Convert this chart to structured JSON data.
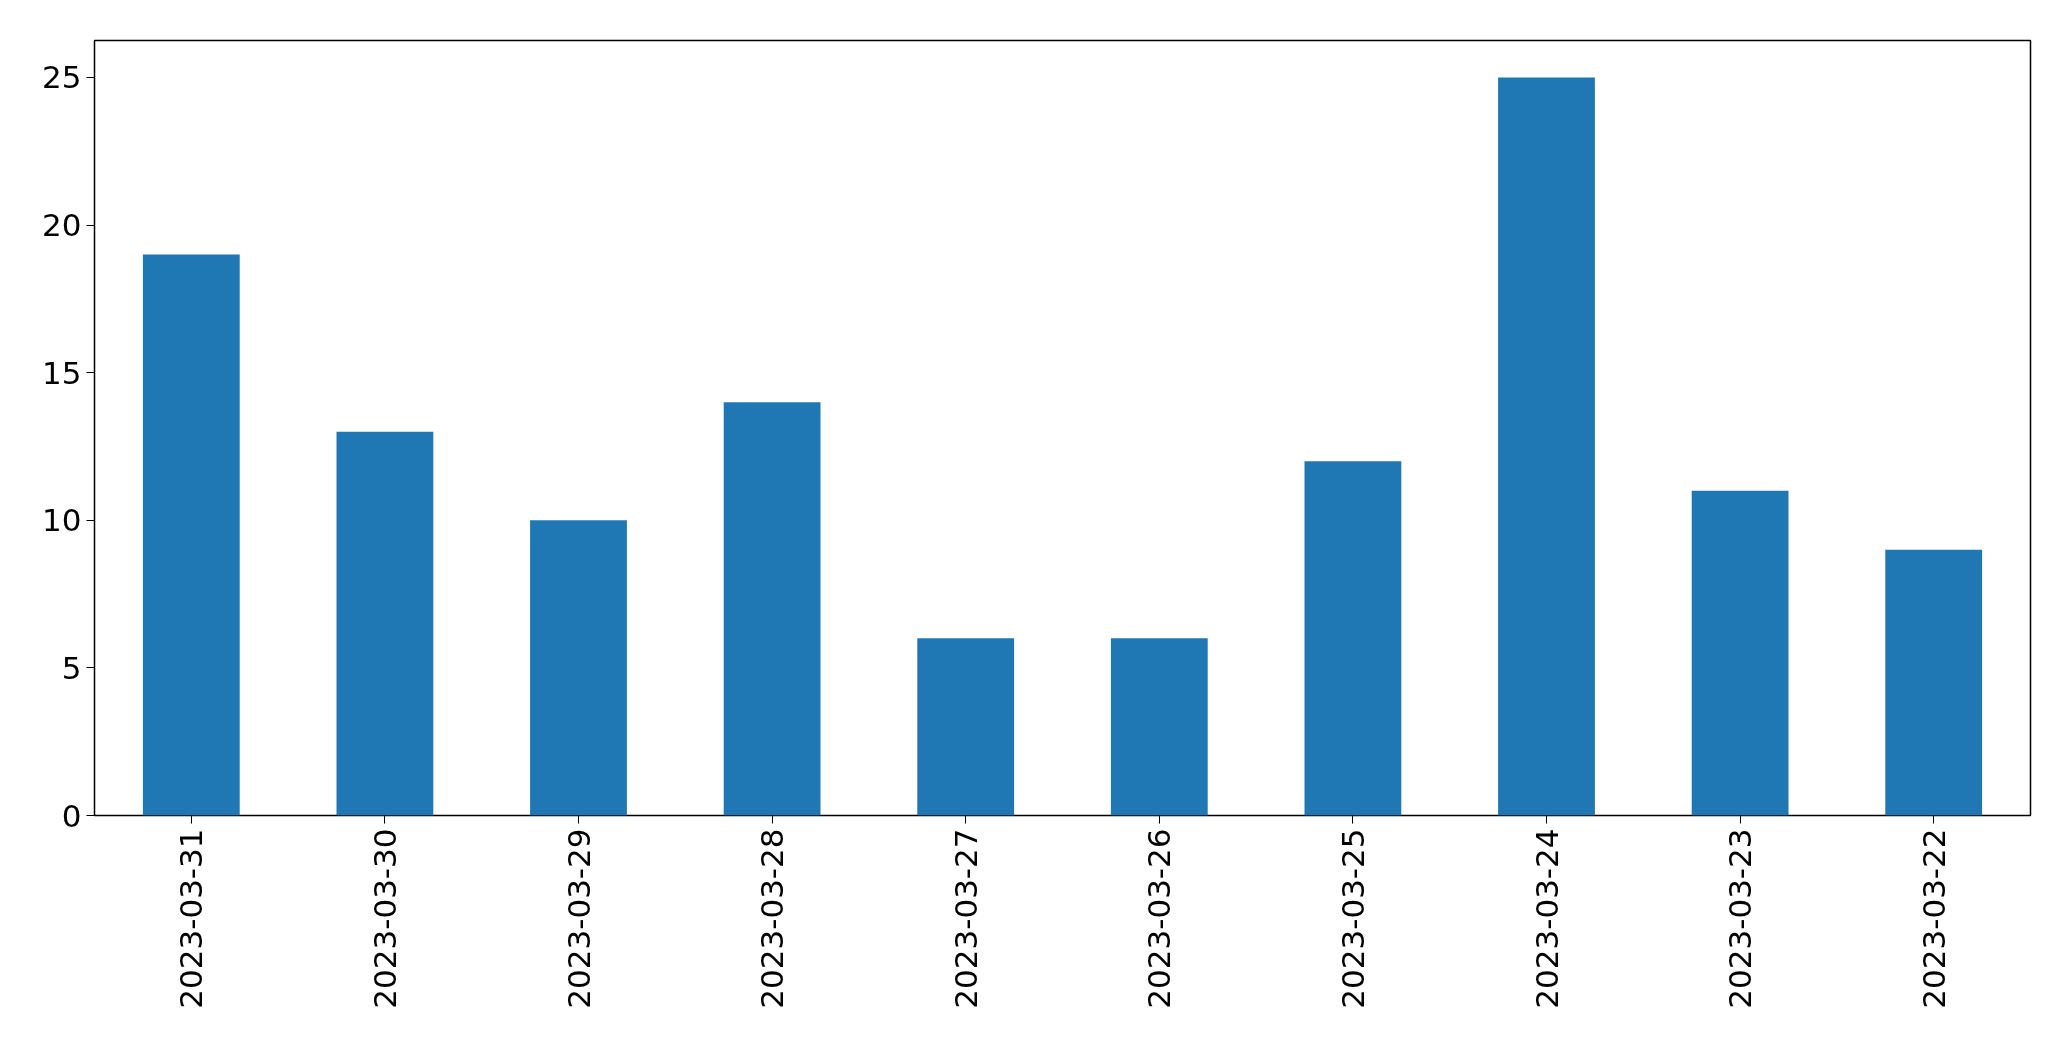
{
  "chart_data": {
    "type": "bar",
    "categories": [
      "2023-03-31",
      "2023-03-30",
      "2023-03-29",
      "2023-03-28",
      "2023-03-27",
      "2023-03-26",
      "2023-03-25",
      "2023-03-24",
      "2023-03-23",
      "2023-03-22"
    ],
    "values": [
      19,
      13,
      10,
      14,
      6,
      6,
      12,
      25,
      11,
      9
    ],
    "color": "#1f77b4",
    "ylim": [
      0,
      26.25
    ],
    "yticks": [
      0,
      5,
      10,
      15,
      20,
      25
    ],
    "grid": false
  }
}
